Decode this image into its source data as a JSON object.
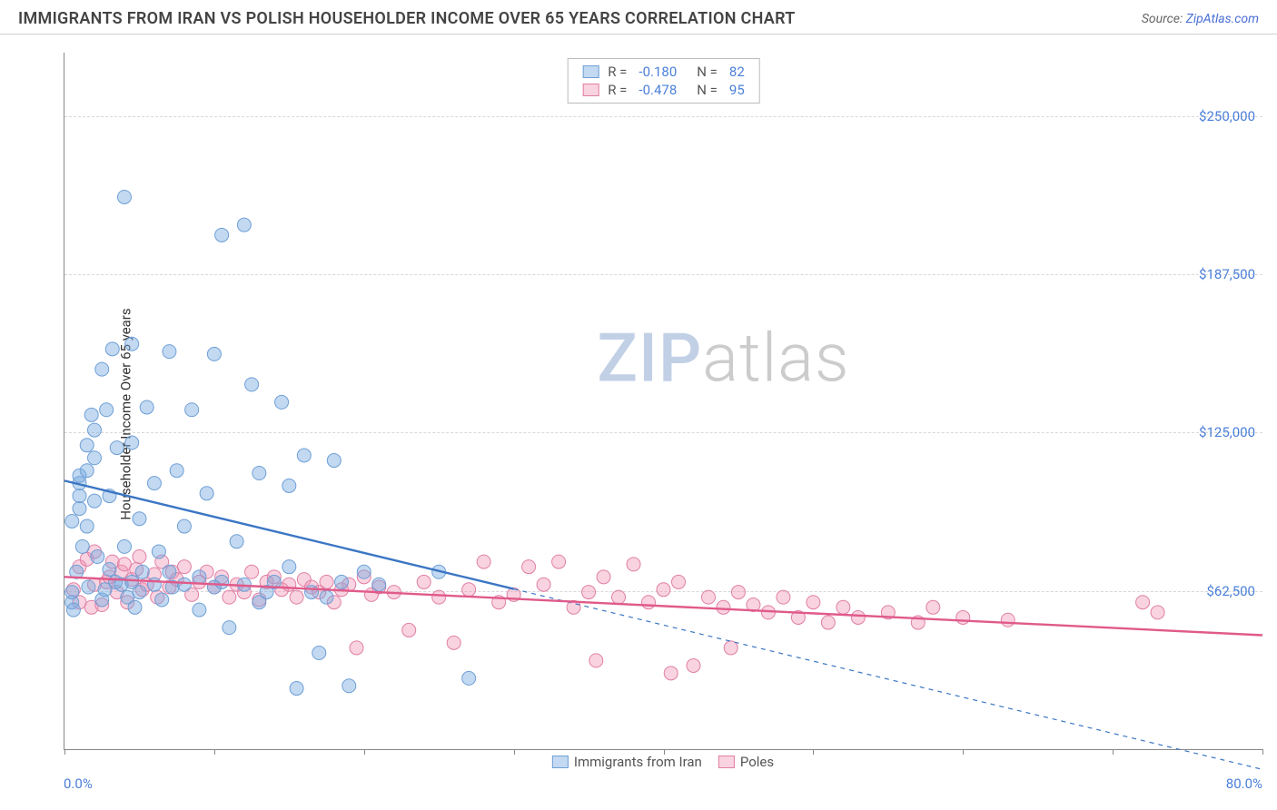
{
  "header": {
    "title": "IMMIGRANTS FROM IRAN VS POLISH HOUSEHOLDER INCOME OVER 65 YEARS CORRELATION CHART",
    "source_label": "Source:",
    "source_name": "ZipAtlas.com"
  },
  "watermark": {
    "part1": "ZIP",
    "part2": "atlas"
  },
  "chart": {
    "type": "scatter",
    "ylabel": "Householder Income Over 65 years",
    "xlim": [
      0,
      80
    ],
    "ylim": [
      0,
      275000
    ],
    "x_start_label": "0.0%",
    "x_end_label": "80.0%",
    "yticks": [
      {
        "v": 62500,
        "label": "$62,500"
      },
      {
        "v": 125000,
        "label": "$125,000"
      },
      {
        "v": 187500,
        "label": "$187,500"
      },
      {
        "v": 250000,
        "label": "$250,000"
      }
    ],
    "xtick_step": 10,
    "background_color": "#ffffff",
    "grid_color": "#d8d8d8",
    "axis_color": "#888888",
    "marker_radius": 7.5,
    "marker_stroke_width": 1,
    "trend_line_width": 2.4,
    "label_color": "#4a7fd8",
    "series": [
      {
        "name": "Immigrants from Iran",
        "fill": "rgba(120,170,225,0.45)",
        "stroke": "#6f9fd6",
        "trend_color": "#3b76c4",
        "trend_dash_after_x": 30,
        "R": "-0.180",
        "N": "82",
        "trend": {
          "x0": 0,
          "y0": 106000,
          "x1": 80,
          "y1": -8000
        },
        "points": [
          [
            0.5,
            58000
          ],
          [
            0.5,
            62000
          ],
          [
            0.5,
            90000
          ],
          [
            0.6,
            55000
          ],
          [
            0.8,
            70000
          ],
          [
            1.0,
            95000
          ],
          [
            1.0,
            100000
          ],
          [
            1.0,
            105000
          ],
          [
            1.0,
            108000
          ],
          [
            1.2,
            80000
          ],
          [
            1.5,
            88000
          ],
          [
            1.5,
            110000
          ],
          [
            1.5,
            120000
          ],
          [
            1.6,
            64000
          ],
          [
            1.8,
            132000
          ],
          [
            2.0,
            98000
          ],
          [
            2.0,
            115000
          ],
          [
            2.0,
            126000
          ],
          [
            2.2,
            76000
          ],
          [
            2.5,
            150000
          ],
          [
            2.5,
            59000
          ],
          [
            2.7,
            63000
          ],
          [
            2.8,
            134000
          ],
          [
            3.0,
            100000
          ],
          [
            3.0,
            71000
          ],
          [
            3.2,
            158000
          ],
          [
            3.4,
            66000
          ],
          [
            3.5,
            119000
          ],
          [
            3.8,
            65000
          ],
          [
            4.0,
            218000
          ],
          [
            4.0,
            80000
          ],
          [
            4.2,
            60000
          ],
          [
            4.5,
            121000
          ],
          [
            4.5,
            160000
          ],
          [
            4.5,
            66000
          ],
          [
            4.7,
            56000
          ],
          [
            5.0,
            62000
          ],
          [
            5.0,
            91000
          ],
          [
            5.2,
            70000
          ],
          [
            5.5,
            135000
          ],
          [
            6.0,
            105000
          ],
          [
            6.0,
            65000
          ],
          [
            6.3,
            78000
          ],
          [
            6.5,
            59000
          ],
          [
            7.0,
            157000
          ],
          [
            7.0,
            70000
          ],
          [
            7.2,
            64000
          ],
          [
            7.5,
            110000
          ],
          [
            8.0,
            65000
          ],
          [
            8.0,
            88000
          ],
          [
            8.5,
            134000
          ],
          [
            9.0,
            55000
          ],
          [
            9.0,
            68000
          ],
          [
            9.5,
            101000
          ],
          [
            10.0,
            64000
          ],
          [
            10.0,
            156000
          ],
          [
            10.5,
            203000
          ],
          [
            10.5,
            66000
          ],
          [
            11.0,
            48000
          ],
          [
            11.5,
            82000
          ],
          [
            12.0,
            207000
          ],
          [
            12.0,
            65000
          ],
          [
            12.5,
            144000
          ],
          [
            13.0,
            58000
          ],
          [
            13.0,
            109000
          ],
          [
            13.5,
            62000
          ],
          [
            14.0,
            66000
          ],
          [
            14.5,
            137000
          ],
          [
            15.0,
            72000
          ],
          [
            15.0,
            104000
          ],
          [
            15.5,
            24000
          ],
          [
            16.0,
            116000
          ],
          [
            16.5,
            62000
          ],
          [
            17.0,
            38000
          ],
          [
            17.5,
            60000
          ],
          [
            18.0,
            114000
          ],
          [
            18.5,
            66000
          ],
          [
            19.0,
            25000
          ],
          [
            20.0,
            70000
          ],
          [
            21.0,
            65000
          ],
          [
            25.0,
            70000
          ],
          [
            27.0,
            28000
          ]
        ]
      },
      {
        "name": "Poles",
        "fill": "rgba(240,150,180,0.42)",
        "stroke": "#e07fa5",
        "trend_color": "#e05a8a",
        "trend_dash_after_x": 80,
        "R": "-0.478",
        "N": "95",
        "trend": {
          "x0": 0,
          "y0": 68000,
          "x1": 80,
          "y1": 45000
        },
        "points": [
          [
            0.6,
            63000
          ],
          [
            1.0,
            58000
          ],
          [
            1.0,
            72000
          ],
          [
            1.5,
            75000
          ],
          [
            1.8,
            56000
          ],
          [
            2.0,
            65000
          ],
          [
            2.0,
            78000
          ],
          [
            2.5,
            57000
          ],
          [
            2.8,
            66000
          ],
          [
            3.0,
            68000
          ],
          [
            3.2,
            74000
          ],
          [
            3.5,
            62000
          ],
          [
            3.8,
            70000
          ],
          [
            4.0,
            73000
          ],
          [
            4.2,
            58000
          ],
          [
            4.5,
            67000
          ],
          [
            4.8,
            71000
          ],
          [
            5.0,
            76000
          ],
          [
            5.2,
            63000
          ],
          [
            5.5,
            65000
          ],
          [
            6.0,
            69000
          ],
          [
            6.2,
            60000
          ],
          [
            6.5,
            74000
          ],
          [
            7.0,
            64000
          ],
          [
            7.2,
            70000
          ],
          [
            7.5,
            67000
          ],
          [
            8.0,
            72000
          ],
          [
            8.5,
            61000
          ],
          [
            9.0,
            66000
          ],
          [
            9.5,
            70000
          ],
          [
            10.0,
            64000
          ],
          [
            10.5,
            68000
          ],
          [
            11.0,
            60000
          ],
          [
            11.5,
            65000
          ],
          [
            12.0,
            62000
          ],
          [
            12.5,
            70000
          ],
          [
            13.0,
            59000
          ],
          [
            13.5,
            66000
          ],
          [
            14.0,
            68000
          ],
          [
            14.5,
            63000
          ],
          [
            15.0,
            65000
          ],
          [
            15.5,
            60000
          ],
          [
            16.0,
            67000
          ],
          [
            16.5,
            64000
          ],
          [
            17.0,
            62000
          ],
          [
            17.5,
            66000
          ],
          [
            18.0,
            58000
          ],
          [
            18.5,
            63000
          ],
          [
            19.0,
            65000
          ],
          [
            19.5,
            40000
          ],
          [
            20.0,
            68000
          ],
          [
            20.5,
            61000
          ],
          [
            21.0,
            64000
          ],
          [
            22.0,
            62000
          ],
          [
            23.0,
            47000
          ],
          [
            24.0,
            66000
          ],
          [
            25.0,
            60000
          ],
          [
            26.0,
            42000
          ],
          [
            27.0,
            63000
          ],
          [
            28.0,
            74000
          ],
          [
            29.0,
            58000
          ],
          [
            30.0,
            61000
          ],
          [
            31.0,
            72000
          ],
          [
            32.0,
            65000
          ],
          [
            33.0,
            74000
          ],
          [
            34.0,
            56000
          ],
          [
            35.0,
            62000
          ],
          [
            35.5,
            35000
          ],
          [
            36.0,
            68000
          ],
          [
            37.0,
            60000
          ],
          [
            38.0,
            73000
          ],
          [
            39.0,
            58000
          ],
          [
            40.0,
            63000
          ],
          [
            40.5,
            30000
          ],
          [
            41.0,
            66000
          ],
          [
            42.0,
            33000
          ],
          [
            43.0,
            60000
          ],
          [
            44.0,
            56000
          ],
          [
            44.5,
            40000
          ],
          [
            45.0,
            62000
          ],
          [
            46.0,
            57000
          ],
          [
            47.0,
            54000
          ],
          [
            48.0,
            60000
          ],
          [
            49.0,
            52000
          ],
          [
            50.0,
            58000
          ],
          [
            51.0,
            50000
          ],
          [
            52.0,
            56000
          ],
          [
            53.0,
            52000
          ],
          [
            55.0,
            54000
          ],
          [
            57.0,
            50000
          ],
          [
            58.0,
            56000
          ],
          [
            60.0,
            52000
          ],
          [
            63.0,
            51000
          ],
          [
            72.0,
            58000
          ],
          [
            73.0,
            54000
          ]
        ]
      }
    ],
    "legend_bottom": [
      {
        "label": "Immigrants from Iran",
        "fill": "rgba(120,170,225,0.45)",
        "stroke": "#6f9fd6"
      },
      {
        "label": "Poles",
        "fill": "rgba(240,150,180,0.42)",
        "stroke": "#e07fa5"
      }
    ]
  }
}
